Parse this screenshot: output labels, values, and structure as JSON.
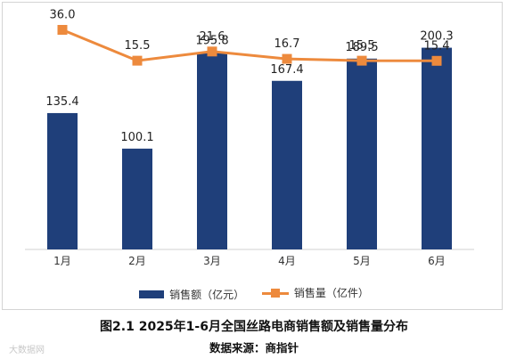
{
  "chart_data": {
    "type": "bar+line",
    "categories": [
      "1月",
      "2月",
      "3月",
      "4月",
      "5月",
      "6月"
    ],
    "series": [
      {
        "name": "销售额（亿元）",
        "type": "bar",
        "color": "#1f3f7a",
        "values": [
          135.4,
          100.1,
          195.8,
          167.4,
          189.5,
          200.3
        ]
      },
      {
        "name": "销售量（亿件）",
        "type": "line",
        "color": "#ed8a3d",
        "values": [
          36.0,
          15.5,
          21.6,
          16.7,
          15.5,
          15.4
        ]
      }
    ],
    "bar_axis_range": [
      0,
      230
    ],
    "line_axis_range": [
      -110,
      44
    ],
    "value_labels": {
      "bars": [
        "135.4",
        "100.1",
        "195.8",
        "167.4",
        "189.5",
        "200.3"
      ],
      "line": [
        "36.0",
        "15.5",
        "21.6",
        "16.7",
        "15.5",
        "15.4"
      ]
    },
    "grid": false,
    "legend": "bottom"
  },
  "legend": {
    "bar_label": "销售额（亿元）",
    "line_label": "销售量（亿件）"
  },
  "figure": {
    "title": "图2.1    2025年1-6月全国丝路电商销售额及销售量分布",
    "source": "数据来源：商指针"
  },
  "watermark": "大数据网"
}
